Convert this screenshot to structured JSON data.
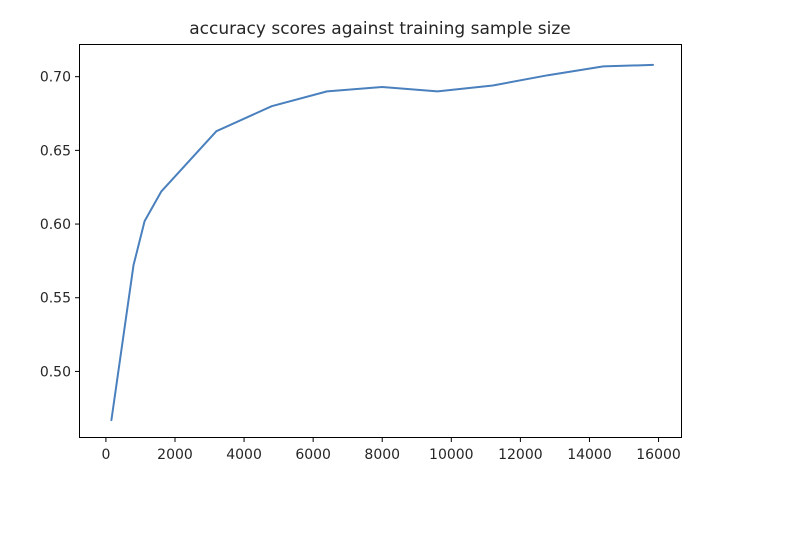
{
  "chart_data": {
    "type": "line",
    "title": "accuracy scores against training sample size",
    "xlabel": "",
    "ylabel": "",
    "xlim": [
      -750,
      16650
    ],
    "ylim": [
      0.4555,
      0.7215
    ],
    "x_ticks": [
      0,
      2000,
      4000,
      6000,
      8000,
      10000,
      12000,
      14000,
      16000
    ],
    "x_tick_labels": [
      "0",
      "2000",
      "4000",
      "6000",
      "8000",
      "10000",
      "12000",
      "14000",
      "16000"
    ],
    "y_ticks": [
      0.5,
      0.55,
      0.6,
      0.65,
      0.7
    ],
    "y_tick_labels": [
      "0.50",
      "0.55",
      "0.60",
      "0.65",
      "0.70"
    ],
    "grid": false,
    "legend": "none",
    "series": [
      {
        "color": "#4a80bd",
        "x": [
          160,
          800,
          1120,
          1600,
          3200,
          4800,
          6400,
          8000,
          9600,
          11200,
          12800,
          14400,
          15840
        ],
        "y": [
          0.467,
          0.572,
          0.602,
          0.622,
          0.663,
          0.68,
          0.69,
          0.693,
          0.69,
          0.694,
          0.701,
          0.707,
          0.708
        ]
      }
    ]
  }
}
